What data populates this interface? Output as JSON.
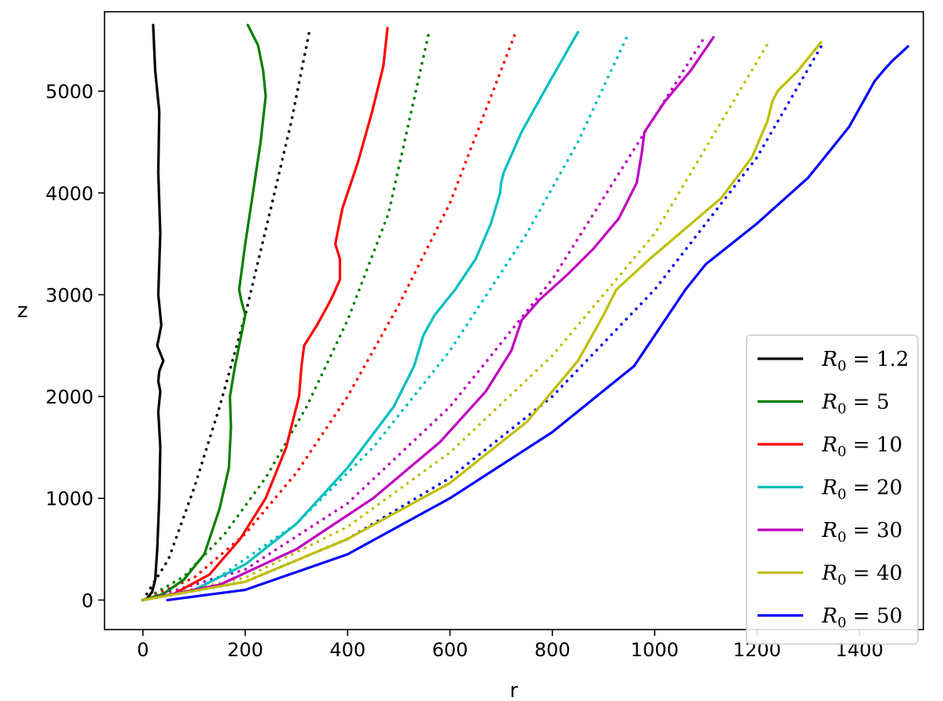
{
  "chart_data": {
    "type": "line",
    "title": "",
    "xlabel": "r",
    "ylabel": "z",
    "xlim": [
      -75,
      1525
    ],
    "ylim": [
      -290,
      5780
    ],
    "xticks": [
      0,
      200,
      400,
      600,
      800,
      1000,
      1200,
      1400
    ],
    "yticks": [
      0,
      1000,
      2000,
      3000,
      4000,
      5000
    ],
    "grid": false,
    "legend_position": "lower-right",
    "series": [
      {
        "name": "R₀ = 1.2",
        "legend_prefix": "R",
        "legend_sub": "0",
        "legend_value": "1.2",
        "color": "#000000",
        "style": "solid",
        "x": [
          0,
          8,
          18,
          24,
          28,
          32,
          34,
          30,
          34,
          30,
          32,
          40,
          28,
          36,
          30,
          34,
          30,
          32,
          24,
          20
        ],
        "y": [
          0,
          15,
          80,
          200,
          500,
          1000,
          1500,
          1850,
          2050,
          2150,
          2250,
          2350,
          2500,
          2700,
          3000,
          3600,
          4200,
          4800,
          5200,
          5650
        ]
      },
      {
        "name": "R₀ = 5",
        "legend_prefix": "R",
        "legend_sub": "0",
        "legend_value": "5",
        "color": "#008000",
        "style": "solid",
        "x": [
          0,
          40,
          80,
          120,
          150,
          168,
          172,
          170,
          180,
          192,
          200,
          192,
          188,
          200,
          215,
          230,
          240,
          235,
          225,
          205
        ],
        "y": [
          0,
          60,
          200,
          450,
          900,
          1300,
          1700,
          2000,
          2300,
          2600,
          2800,
          2950,
          3050,
          3500,
          4000,
          4500,
          4950,
          5200,
          5450,
          5650
        ]
      },
      {
        "name": "R₀ = 10",
        "legend_prefix": "R",
        "legend_sub": "0",
        "legend_value": "10",
        "color": "#ff0000",
        "style": "solid",
        "x": [
          0,
          60,
          130,
          190,
          240,
          280,
          305,
          310,
          315,
          340,
          362,
          372,
          385,
          385,
          376,
          390,
          420,
          448,
          470,
          478
        ],
        "y": [
          0,
          60,
          250,
          600,
          1000,
          1500,
          2000,
          2300,
          2500,
          2700,
          2900,
          3000,
          3150,
          3350,
          3500,
          3850,
          4300,
          4800,
          5250,
          5620
        ]
      },
      {
        "name": "R₀ = 20",
        "legend_prefix": "R",
        "legend_sub": "0",
        "legend_value": "20",
        "color": "#00bfbf",
        "style": "solid",
        "x": [
          0,
          100,
          200,
          300,
          400,
          490,
          530,
          548,
          570,
          610,
          650,
          680,
          698,
          700,
          705,
          740,
          790,
          850
        ],
        "y": [
          0,
          100,
          350,
          750,
          1300,
          1900,
          2300,
          2600,
          2800,
          3050,
          3350,
          3700,
          4000,
          4100,
          4200,
          4600,
          5050,
          5580
        ]
      },
      {
        "name": "R₀ = 30",
        "legend_prefix": "R",
        "legend_sub": "0",
        "legend_value": "30",
        "color": "#bf00bf",
        "style": "solid",
        "x": [
          0,
          150,
          300,
          450,
          580,
          670,
          720,
          740,
          775,
          830,
          880,
          930,
          965,
          975,
          980,
          1020,
          1070,
          1115
        ],
        "y": [
          0,
          150,
          500,
          1000,
          1550,
          2050,
          2450,
          2750,
          2950,
          3200,
          3450,
          3750,
          4100,
          4400,
          4600,
          4900,
          5200,
          5530
        ]
      },
      {
        "name": "R₀ = 40",
        "legend_prefix": "R",
        "legend_sub": "0",
        "legend_value": "40",
        "color": "#bfbf00",
        "style": "solid",
        "x": [
          0,
          200,
          400,
          600,
          750,
          850,
          900,
          925,
          990,
          1060,
          1130,
          1190,
          1220,
          1230,
          1240,
          1280,
          1325
        ],
        "y": [
          0,
          180,
          600,
          1150,
          1750,
          2350,
          2800,
          3050,
          3350,
          3650,
          3950,
          4350,
          4700,
          4900,
          5000,
          5200,
          5480
        ]
      },
      {
        "name": "R₀ = 50",
        "legend_prefix": "R",
        "legend_sub": "0",
        "legend_value": "50",
        "color": "#0000ff",
        "style": "solid",
        "x": [
          48,
          200,
          400,
          600,
          800,
          960,
          1060,
          1100,
          1200,
          1300,
          1380,
          1430,
          1450,
          1465,
          1495
        ],
        "y": [
          0,
          100,
          450,
          1000,
          1650,
          2300,
          3050,
          3300,
          3700,
          4150,
          4650,
          5100,
          5220,
          5300,
          5440
        ]
      },
      {
        "name": "",
        "color": "#000000",
        "style": "dotted",
        "x": [
          0,
          50,
          100,
          150,
          200,
          250,
          290,
          325
        ],
        "y": [
          0,
          400,
          1100,
          1900,
          2800,
          3850,
          4700,
          5580
        ]
      },
      {
        "name": "",
        "color": "#008000",
        "style": "dotted",
        "x": [
          0,
          80,
          160,
          240,
          320,
          400,
          480,
          560
        ],
        "y": [
          0,
          230,
          650,
          1200,
          1900,
          2750,
          3800,
          5600
        ]
      },
      {
        "name": "",
        "color": "#ff0000",
        "style": "dotted",
        "x": [
          0,
          100,
          200,
          300,
          400,
          500,
          600,
          730
        ],
        "y": [
          0,
          220,
          650,
          1250,
          2000,
          2900,
          3900,
          5600
        ]
      },
      {
        "name": "",
        "color": "#00bfbf",
        "style": "dotted",
        "x": [
          0,
          150,
          300,
          450,
          600,
          750,
          850,
          950
        ],
        "y": [
          0,
          230,
          750,
          1500,
          2450,
          3600,
          4500,
          5580
        ]
      },
      {
        "name": "",
        "color": "#bf00bf",
        "style": "dotted",
        "x": [
          0,
          200,
          400,
          600,
          800,
          950,
          1100
        ],
        "y": [
          0,
          300,
          950,
          1900,
          3150,
          4350,
          5550
        ]
      },
      {
        "name": "",
        "color": "#bfbf00",
        "style": "dotted",
        "x": [
          0,
          200,
          400,
          600,
          800,
          1000,
          1225
        ],
        "y": [
          0,
          220,
          720,
          1450,
          2400,
          3600,
          5500
        ]
      },
      {
        "name": "",
        "color": "#0000ff",
        "style": "dotted",
        "x": [
          0,
          200,
          400,
          600,
          800,
          1000,
          1200,
          1330
        ],
        "y": [
          0,
          180,
          600,
          1200,
          2000,
          3050,
          4350,
          5480
        ]
      }
    ]
  }
}
